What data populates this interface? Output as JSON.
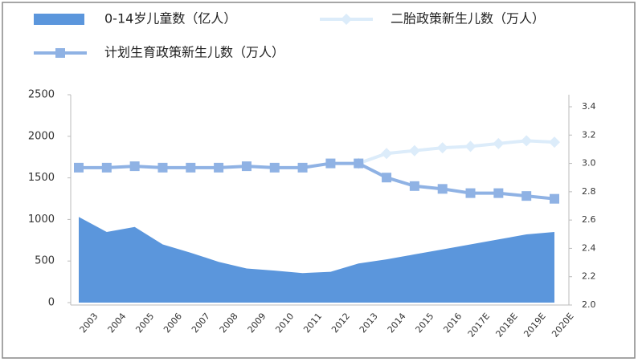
{
  "chart_data": {
    "type": "area-line",
    "categories": [
      "2003",
      "2004",
      "2005",
      "2006",
      "2007",
      "2008",
      "2009",
      "2010",
      "2011",
      "2012",
      "2013",
      "2014",
      "2015",
      "2016",
      "2017E",
      "2018E",
      "2019E",
      "2020E"
    ],
    "series": [
      {
        "name": "0-14岁儿童数（亿人）",
        "type": "area",
        "color": "#5b96dc",
        "values": [
          1030,
          850,
          910,
          700,
          600,
          490,
          410,
          385,
          355,
          370,
          470,
          520,
          580,
          640,
          700,
          760,
          820,
          850
        ]
      },
      {
        "name": "二胎政策新生儿数（万人）",
        "type": "line",
        "axis": "y2",
        "color": "#dcecfa",
        "marker": "diamond",
        "values": [
          null,
          null,
          null,
          null,
          null,
          null,
          null,
          null,
          null,
          null,
          3.0,
          3.07,
          3.09,
          3.11,
          3.12,
          3.14,
          3.16,
          3.15
        ]
      },
      {
        "name": "计划生育政策新生儿数（万人）",
        "type": "line",
        "axis": "y2",
        "color": "#8fb2e4",
        "marker": "square",
        "values": [
          2.97,
          2.97,
          2.98,
          2.97,
          2.97,
          2.97,
          2.98,
          2.97,
          2.97,
          3.0,
          3.0,
          2.9,
          2.84,
          2.82,
          2.79,
          2.79,
          2.77,
          2.75
        ]
      }
    ],
    "ylim": [
      0,
      2500
    ],
    "yticks": [
      0,
      500,
      1000,
      1500,
      2000,
      2500
    ],
    "y2lim": [
      2.0,
      3.4
    ],
    "y2ticks": [
      {
        "value": 2.0,
        "label": "2.0"
      },
      2.2,
      2.4,
      2.6,
      2.8,
      {
        "value": 3.0,
        "label": "3.0"
      },
      3.2,
      3.4
    ]
  }
}
